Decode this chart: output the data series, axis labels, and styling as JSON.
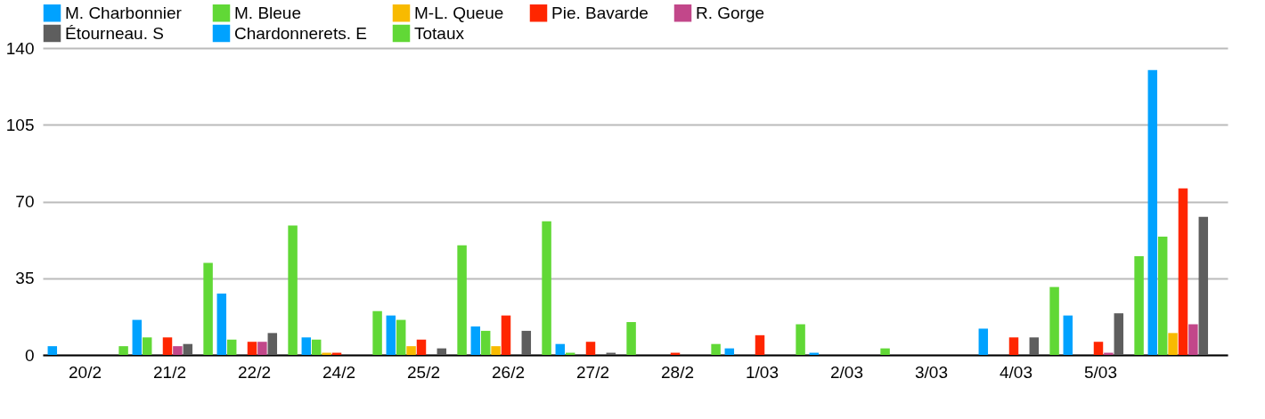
{
  "chart_data": {
    "type": "bar",
    "categories": [
      "20/2",
      "21/2",
      "22/2",
      "24/2",
      "25/2",
      "26/2",
      "27/2",
      "28/2",
      "1/03",
      "2/03",
      "3/03",
      "4/03",
      "5/03",
      null
    ],
    "series": [
      {
        "name": "M.  Charbonnier",
        "color": "#00a2ff",
        "values": [
          4,
          16,
          28,
          8,
          18,
          13,
          5,
          0,
          3,
          1,
          0,
          12,
          18,
          130
        ]
      },
      {
        "name": "M. Bleue",
        "color": "#61d836",
        "values": [
          0,
          8,
          7,
          7,
          16,
          11,
          1,
          0,
          0,
          0,
          0,
          0,
          0,
          54
        ]
      },
      {
        "name": "M-L. Queue",
        "color": "#f8ba00",
        "values": [
          0,
          0,
          0,
          1,
          4,
          4,
          0,
          0,
          0,
          0,
          0,
          0,
          0,
          10
        ]
      },
      {
        "name": "Pie. Bavarde",
        "color": "#ff2600",
        "values": [
          0,
          8,
          6,
          1,
          7,
          18,
          6,
          1,
          9,
          0,
          0,
          8,
          6,
          76
        ]
      },
      {
        "name": "R. Gorge",
        "color": "#c2478a",
        "values": [
          0,
          4,
          6,
          0,
          0,
          0,
          0,
          0,
          0,
          0,
          0,
          0,
          1,
          14
        ]
      },
      {
        "name": "Étourneau. S",
        "color": "#5e5e5e",
        "values": [
          0,
          5,
          10,
          0,
          3,
          11,
          1,
          0,
          0,
          0,
          0,
          8,
          19,
          63
        ]
      },
      {
        "name": "Chardonnerets. E",
        "color": "#00a2ff",
        "values": [
          0,
          0,
          0,
          0,
          0,
          0,
          0,
          0,
          0,
          0,
          0,
          0,
          0,
          0
        ]
      },
      {
        "name": "Totaux",
        "color": "#61d836",
        "values": [
          4,
          42,
          59,
          20,
          50,
          61,
          15,
          5,
          14,
          3,
          0,
          31,
          45,
          null
        ]
      }
    ],
    "ylim": [
      0,
      140
    ],
    "yticks": [
      0,
      35,
      70,
      105,
      140
    ],
    "grid": "y",
    "legend": "top"
  }
}
